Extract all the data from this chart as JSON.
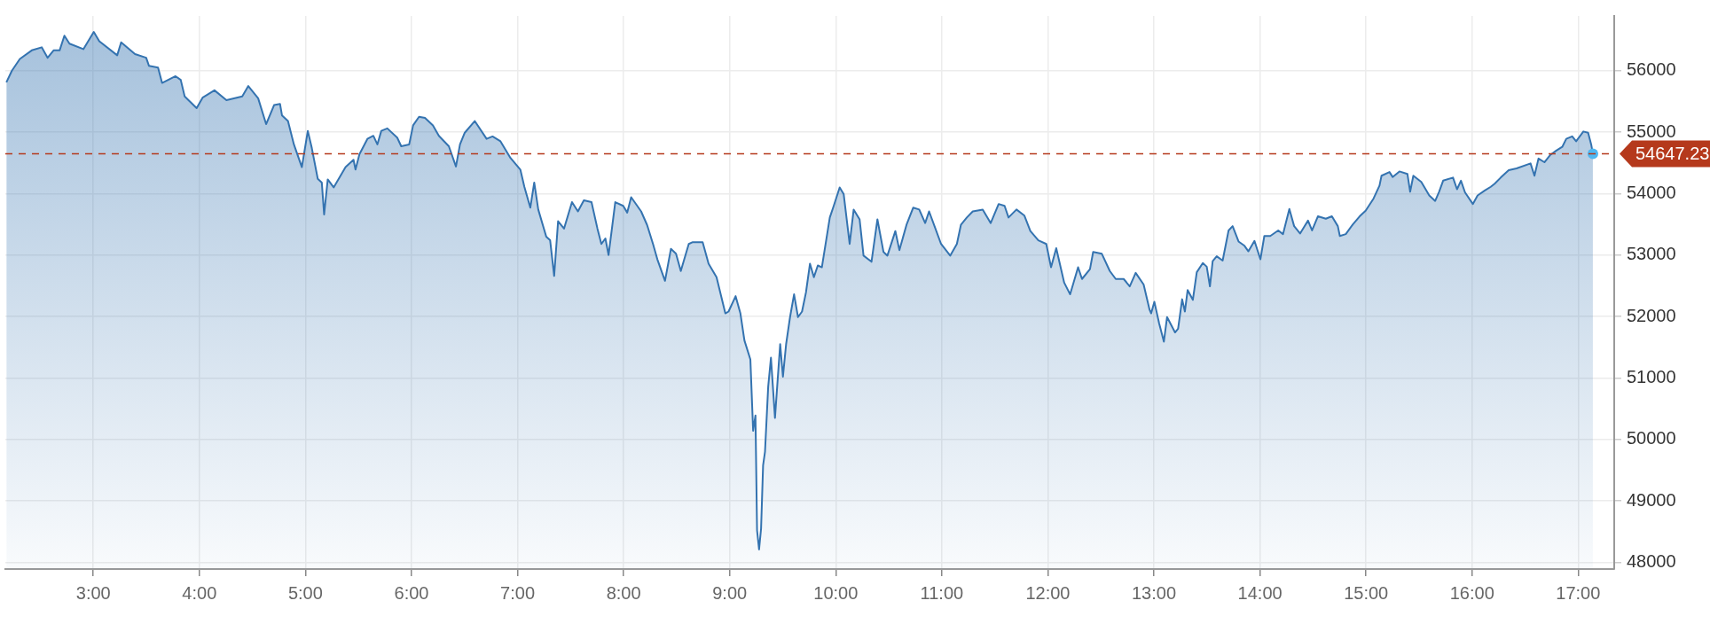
{
  "chart_data": {
    "type": "area",
    "x": [
      2.18,
      2.232,
      2.307,
      2.419,
      2.513,
      2.569,
      2.625,
      2.682,
      2.727,
      2.775,
      2.906,
      3.004,
      3.056,
      3.225,
      3.262,
      3.393,
      3.498,
      3.524,
      3.61,
      3.648,
      3.775,
      3.824,
      3.861,
      3.974,
      4.03,
      4.142,
      4.255,
      4.404,
      4.461,
      4.554,
      4.629,
      4.704,
      4.76,
      4.779,
      4.835,
      4.891,
      4.966,
      5.022,
      5.06,
      5.116,
      5.154,
      5.176,
      5.21,
      5.266,
      5.378,
      5.453,
      5.472,
      5.509,
      5.584,
      5.64,
      5.678,
      5.715,
      5.772,
      5.865,
      5.903,
      5.978,
      6.015,
      6.071,
      6.127,
      6.202,
      6.258,
      6.352,
      6.419,
      6.457,
      6.502,
      6.596,
      6.708,
      6.764,
      6.839,
      6.933,
      7.026,
      7.064,
      7.12,
      7.157,
      7.195,
      7.27,
      7.307,
      7.345,
      7.382,
      7.438,
      7.513,
      7.569,
      7.625,
      7.697,
      7.753,
      7.79,
      7.828,
      7.858,
      7.921,
      7.996,
      8.034,
      8.071,
      8.165,
      8.221,
      8.277,
      8.318,
      8.39,
      8.446,
      8.494,
      8.539,
      8.614,
      8.652,
      8.745,
      8.801,
      8.876,
      8.959,
      8.989,
      9.056,
      9.101,
      9.139,
      9.195,
      9.221,
      9.243,
      9.258,
      9.277,
      9.296,
      9.315,
      9.333,
      9.363,
      9.389,
      9.427,
      9.476,
      9.502,
      9.532,
      9.569,
      9.607,
      9.644,
      9.682,
      9.719,
      9.757,
      9.794,
      9.831,
      9.869,
      9.944,
      9.981,
      10.037,
      10.075,
      10.131,
      10.169,
      10.225,
      10.262,
      10.337,
      10.393,
      10.45,
      10.487,
      10.562,
      10.6,
      10.667,
      10.73,
      10.787,
      10.843,
      10.88,
      10.993,
      11.079,
      11.142,
      11.18,
      11.236,
      11.292,
      11.386,
      11.461,
      11.536,
      11.592,
      11.629,
      11.704,
      11.779,
      11.835,
      11.91,
      11.985,
      12.03,
      12.079,
      12.154,
      12.21,
      12.285,
      12.322,
      12.397,
      12.427,
      12.509,
      12.584,
      12.64,
      12.715,
      12.772,
      12.828,
      12.903,
      12.959,
      12.974,
      13.004,
      13.049,
      13.094,
      13.124,
      13.199,
      13.228,
      13.266,
      13.292,
      13.318,
      13.367,
      13.404,
      13.461,
      13.498,
      13.528,
      13.554,
      13.592,
      13.648,
      13.704,
      13.742,
      13.798,
      13.854,
      13.891,
      13.948,
      14.004,
      14.041,
      14.097,
      14.172,
      14.217,
      14.277,
      14.322,
      14.378,
      14.453,
      14.491,
      14.546,
      14.621,
      14.678,
      14.734,
      14.753,
      14.809,
      14.876,
      14.94,
      14.996,
      15.071,
      15.127,
      15.146,
      15.221,
      15.251,
      15.315,
      15.39,
      15.416,
      15.446,
      15.521,
      15.596,
      15.652,
      15.689,
      15.727,
      15.82,
      15.858,
      15.895,
      15.933,
      16.007,
      16.052,
      16.12,
      16.176,
      16.213,
      16.27,
      16.345,
      16.419,
      16.551,
      16.588,
      16.626,
      16.682,
      16.738,
      16.794,
      16.85,
      16.888,
      16.944,
      16.981,
      17.049,
      17.094,
      17.124,
      17.139
    ],
    "values": [
      55810,
      56000,
      56190,
      56330,
      56380,
      56210,
      56330,
      56330,
      56570,
      56440,
      56350,
      56630,
      56480,
      56250,
      56460,
      56270,
      56210,
      56080,
      56050,
      55800,
      55910,
      55850,
      55580,
      55390,
      55560,
      55680,
      55520,
      55580,
      55750,
      55550,
      55130,
      55440,
      55460,
      55270,
      55180,
      54800,
      54430,
      55020,
      54740,
      54240,
      54180,
      53660,
      54230,
      54100,
      54430,
      54550,
      54390,
      54640,
      54890,
      54940,
      54800,
      55020,
      55060,
      54910,
      54770,
      54800,
      55110,
      55250,
      55230,
      55110,
      54940,
      54770,
      54440,
      54800,
      54990,
      55180,
      54890,
      54930,
      54850,
      54580,
      54390,
      54110,
      53770,
      54180,
      53740,
      53300,
      53240,
      52660,
      53550,
      53430,
      53860,
      53710,
      53890,
      53860,
      53430,
      53180,
      53270,
      53000,
      53860,
      53800,
      53690,
      53940,
      53710,
      53490,
      53180,
      52930,
      52580,
      53100,
      53020,
      52740,
      53180,
      53210,
      53210,
      52860,
      52640,
      52050,
      52080,
      52330,
      52050,
      51610,
      51300,
      50140,
      50390,
      48520,
      48210,
      48550,
      49580,
      49800,
      50860,
      51330,
      50350,
      51550,
      51020,
      51550,
      51990,
      52360,
      51990,
      52080,
      52390,
      52860,
      52640,
      52830,
      52800,
      53610,
      53800,
      54100,
      53990,
      53180,
      53740,
      53580,
      52990,
      52890,
      53580,
      53050,
      52990,
      53390,
      53080,
      53490,
      53770,
      53740,
      53520,
      53710,
      53180,
      52990,
      53180,
      53490,
      53610,
      53710,
      53740,
      53520,
      53830,
      53800,
      53610,
      53740,
      53640,
      53390,
      53240,
      53180,
      52800,
      53110,
      52550,
      52360,
      52800,
      52610,
      52770,
      53050,
      53020,
      52740,
      52610,
      52610,
      52490,
      52710,
      52520,
      52110,
      52050,
      52240,
      51890,
      51590,
      51990,
      51740,
      51800,
      52280,
      52080,
      52430,
      52270,
      52720,
      52870,
      52810,
      52490,
      52900,
      52980,
      52910,
      53400,
      53470,
      53220,
      53150,
      53060,
      53230,
      52930,
      53310,
      53310,
      53400,
      53340,
      53750,
      53470,
      53350,
      53560,
      53400,
      53630,
      53590,
      53630,
      53470,
      53310,
      53340,
      53500,
      53630,
      53720,
      53920,
      54130,
      54290,
      54350,
      54270,
      54360,
      54320,
      54030,
      54290,
      54190,
      53970,
      53880,
      54030,
      54210,
      54260,
      54070,
      54210,
      54020,
      53830,
      53970,
      54050,
      54110,
      54160,
      54260,
      54380,
      54410,
      54490,
      54290,
      54570,
      54510,
      54630,
      54700,
      54760,
      54890,
      54930,
      54850,
      55010,
      54990,
      54790,
      54647.23
    ],
    "color": "#3473b0",
    "xlim": [
      2.17,
      17.34
    ],
    "xticks": [
      {
        "value": 3,
        "label": "3:00"
      },
      {
        "value": 4,
        "label": "4:00"
      },
      {
        "value": 5,
        "label": "5:00"
      },
      {
        "value": 6,
        "label": "6:00"
      },
      {
        "value": 7,
        "label": "7:00"
      },
      {
        "value": 8,
        "label": "8:00"
      },
      {
        "value": 9,
        "label": "9:00"
      },
      {
        "value": 10,
        "label": "10:00"
      },
      {
        "value": 11,
        "label": "11:00"
      },
      {
        "value": 12,
        "label": "12:00"
      },
      {
        "value": 13,
        "label": "13:00"
      },
      {
        "value": 14,
        "label": "14:00"
      },
      {
        "value": 15,
        "label": "15:00"
      },
      {
        "value": 16,
        "label": "16:00"
      },
      {
        "value": 17,
        "label": "17:00"
      }
    ],
    "ylim": [
      47890,
      56890
    ],
    "yticks": [
      48000,
      49000,
      50000,
      51000,
      52000,
      53000,
      54000,
      55000,
      56000
    ],
    "ref_lines": [
      {
        "axis": "y",
        "value": 54647.23,
        "label": "54647.23",
        "color": "#b5391c",
        "line_style": "dashed"
      }
    ],
    "grid": true,
    "legend": false
  }
}
